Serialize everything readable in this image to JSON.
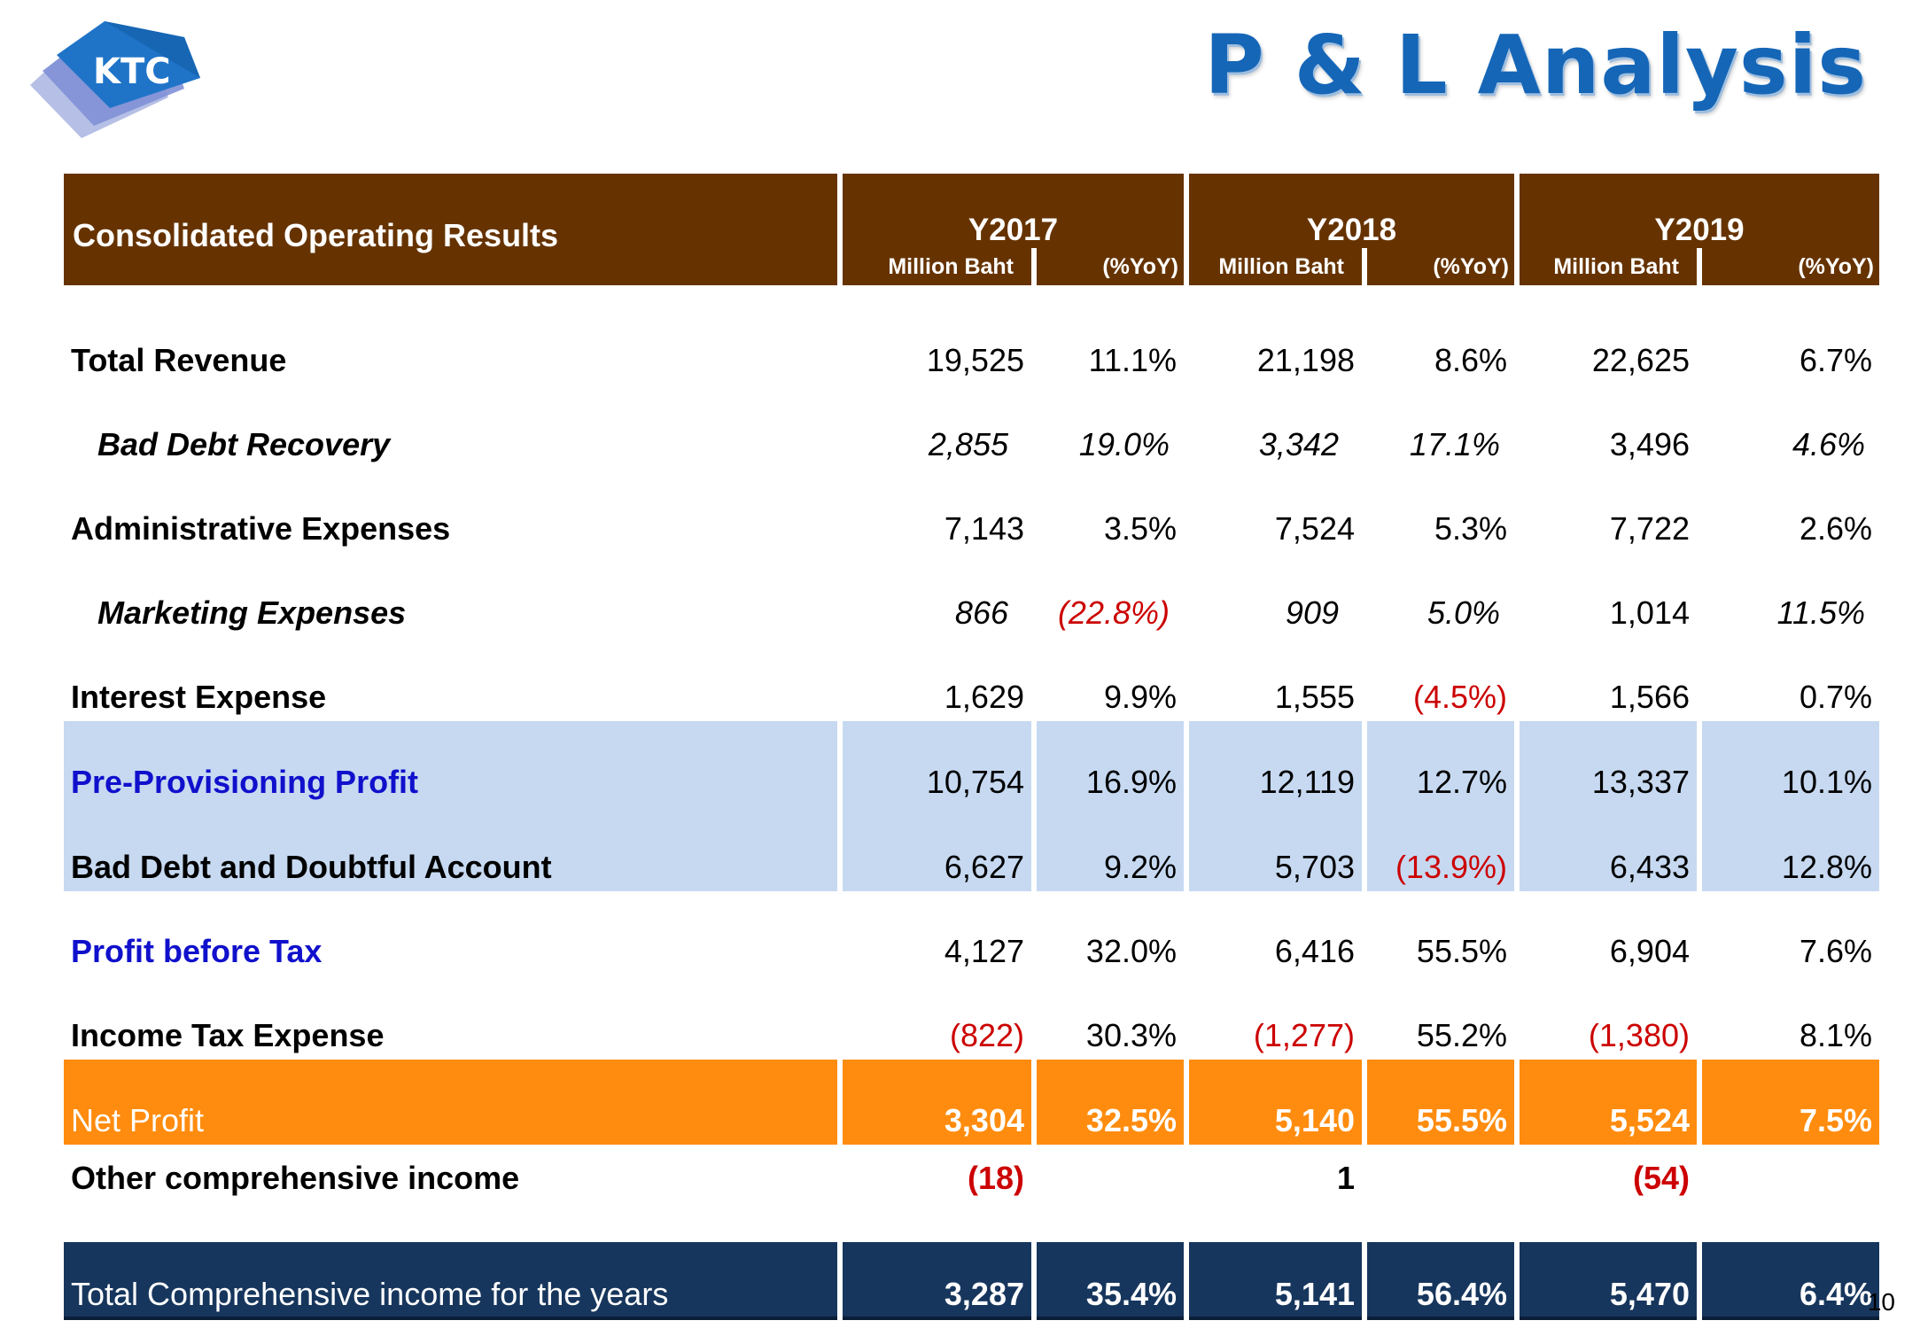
{
  "logo": {
    "text": "KTC"
  },
  "slide_title": "P & L Analysis",
  "table": {
    "header_label": "Consolidated Operating Results",
    "years": [
      "Y2017",
      "Y2018",
      "Y2019"
    ],
    "unit_label": "Million Baht",
    "yoy_label": "(%YoY)",
    "rows": [
      {
        "label": "Total Revenue",
        "values": [
          "19,525",
          "11.1%",
          "21,198",
          "8.6%",
          "22,625",
          "6.7%"
        ]
      },
      {
        "label": "Bad Debt Recovery",
        "values": [
          "2,855",
          "19.0%",
          "3,342",
          "17.1%",
          "3,496",
          "4.6%"
        ]
      },
      {
        "label": "Administrative Expenses",
        "values": [
          "7,143",
          "3.5%",
          "7,524",
          "5.3%",
          "7,722",
          "2.6%"
        ]
      },
      {
        "label": "Marketing Expenses",
        "values": [
          "866",
          "(22.8%)",
          "909",
          "5.0%",
          "1,014",
          "11.5%"
        ]
      },
      {
        "label": "Interest Expense",
        "values": [
          "1,629",
          "9.9%",
          "1,555",
          "(4.5%)",
          "1,566",
          "0.7%"
        ]
      },
      {
        "label": "Pre-Provisioning Profit",
        "values": [
          "10,754",
          "16.9%",
          "12,119",
          "12.7%",
          "13,337",
          "10.1%"
        ]
      },
      {
        "label": "Bad Debt and Doubtful Account",
        "values": [
          "6,627",
          "9.2%",
          "5,703",
          "(13.9%)",
          "6,433",
          "12.8%"
        ]
      },
      {
        "label": "Profit before Tax",
        "values": [
          "4,127",
          "32.0%",
          "6,416",
          "55.5%",
          "6,904",
          "7.6%"
        ]
      },
      {
        "label": "Income Tax Expense",
        "values": [
          "(822)",
          "30.3%",
          "(1,277)",
          "55.2%",
          "(1,380)",
          "8.1%"
        ]
      },
      {
        "label": "Net Profit",
        "values": [
          "3,304",
          "32.5%",
          "5,140",
          "55.5%",
          "5,524",
          "7.5%"
        ]
      },
      {
        "label": "Other comprehensive income",
        "values": [
          "(18)",
          "",
          "1",
          "",
          "(54)",
          ""
        ]
      },
      {
        "label": "Total Comprehensive income for the years",
        "values": [
          "3,287",
          "35.4%",
          "5,141",
          "56.4%",
          "5,470",
          "6.4%"
        ]
      }
    ]
  },
  "colors": {
    "header_brown": "#663300",
    "highlight_blue": "#c6d9f1",
    "net_profit_orange": "#ff8c0e",
    "total_navy": "#17365d",
    "negative_red": "#cc0000",
    "title_blue": "#1566b7"
  },
  "page_number": "10"
}
